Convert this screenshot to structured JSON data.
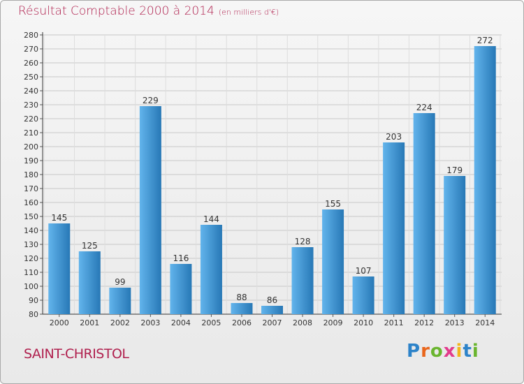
{
  "title": "Résultat Comptable 2000 à 2014",
  "subtitle": "(en milliers d'€)",
  "commune": "SAINT-CHRISTOL",
  "brand": "Proxiti",
  "colors": {
    "title": "#b0204e",
    "bar_light": "#62b4ec",
    "bar_dark": "#2778b6",
    "grid": "#c8c8c8"
  },
  "chart_data": {
    "type": "bar",
    "title": "Résultat Comptable 2000 à 2014",
    "subtitle": "(en milliers d'€)",
    "xlabel": "",
    "ylabel": "",
    "categories": [
      "2000",
      "2001",
      "2002",
      "2003",
      "2004",
      "2005",
      "2006",
      "2007",
      "2008",
      "2009",
      "2010",
      "2011",
      "2012",
      "2013",
      "2014"
    ],
    "values": [
      145,
      125,
      99,
      229,
      116,
      144,
      88,
      86,
      128,
      155,
      107,
      203,
      224,
      179,
      272
    ],
    "ylim": [
      80,
      280
    ],
    "ytick_step": 10,
    "grid": true,
    "legend": "none"
  }
}
